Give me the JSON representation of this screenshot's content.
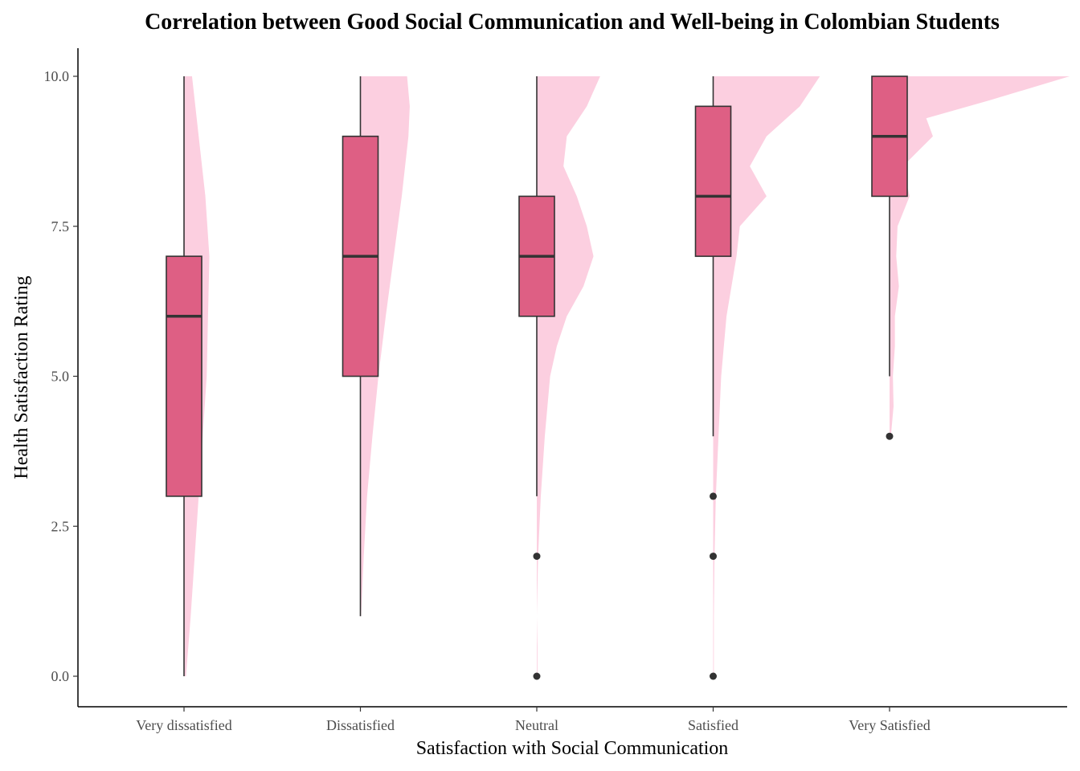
{
  "chart_data": {
    "type": "boxplot",
    "title": "Correlation between Good Social Communication and Well-being in Colombian Students",
    "xlabel": "Satisfaction with Social Communication",
    "ylabel": "Health Satisfaction Rating",
    "ylim": [
      -0.5,
      10.5
    ],
    "yticks": [
      "0.0",
      "2.5",
      "5.0",
      "7.5",
      "10.0"
    ],
    "categories": [
      "Very dissatisfied",
      "Dissatisfied",
      "Neutral",
      "Satisfied",
      "Very Satisfied"
    ],
    "grid": false,
    "colors": {
      "box_fill": "#de5f84",
      "box_line": "#333333",
      "density_fill": "#fccfe0",
      "outlier": "#333333"
    },
    "boxes": [
      {
        "category": "Very dissatisfied",
        "min": 0,
        "q1": 3,
        "median": 6,
        "q3": 7,
        "max": 10,
        "outliers": []
      },
      {
        "category": "Dissatisfied",
        "min": 1,
        "q1": 5,
        "median": 7,
        "q3": 9,
        "max": 10,
        "outliers": []
      },
      {
        "category": "Neutral",
        "min": 3,
        "q1": 6,
        "median": 7,
        "q3": 8,
        "max": 10,
        "outliers": [
          2,
          0
        ]
      },
      {
        "category": "Satisfied",
        "min": 4,
        "q1": 7,
        "median": 8,
        "q3": 9.5,
        "max": 10,
        "outliers": [
          3,
          2,
          0
        ]
      },
      {
        "category": "Very Satisfied",
        "min": 5,
        "q1": 8,
        "median": 9,
        "q3": 10,
        "max": 10,
        "outliers": [
          4
        ]
      }
    ],
    "densities": [
      {
        "category": "Very dissatisfied",
        "points": [
          [
            0,
            0.03
          ],
          [
            1,
            0.1
          ],
          [
            2,
            0.16
          ],
          [
            3,
            0.22
          ],
          [
            4,
            0.28
          ],
          [
            5,
            0.34
          ],
          [
            6,
            0.36
          ],
          [
            7,
            0.38
          ],
          [
            8,
            0.32
          ],
          [
            9,
            0.22
          ],
          [
            10,
            0.12
          ]
        ]
      },
      {
        "category": "Dissatisfied",
        "points": [
          [
            1,
            0.01
          ],
          [
            2,
            0.05
          ],
          [
            3,
            0.1
          ],
          [
            4,
            0.18
          ],
          [
            5,
            0.27
          ],
          [
            6,
            0.38
          ],
          [
            7,
            0.5
          ],
          [
            8,
            0.62
          ],
          [
            9,
            0.72
          ],
          [
            9.5,
            0.74
          ],
          [
            10,
            0.7
          ]
        ]
      },
      {
        "category": "Neutral",
        "points": [
          [
            0,
            0.01
          ],
          [
            0.5,
            0.01
          ],
          [
            1,
            0
          ],
          [
            2,
            0.02
          ],
          [
            3,
            0.06
          ],
          [
            4,
            0.12
          ],
          [
            5,
            0.2
          ],
          [
            5.5,
            0.3
          ],
          [
            6,
            0.45
          ],
          [
            6.5,
            0.7
          ],
          [
            7,
            0.85
          ],
          [
            7.5,
            0.75
          ],
          [
            8,
            0.6
          ],
          [
            8.5,
            0.4
          ],
          [
            9,
            0.45
          ],
          [
            9.5,
            0.75
          ],
          [
            10,
            0.95
          ]
        ]
      },
      {
        "category": "Satisfied",
        "points": [
          [
            0,
            0.01
          ],
          [
            1,
            0.01
          ],
          [
            2,
            0.02
          ],
          [
            3,
            0.04
          ],
          [
            4,
            0.08
          ],
          [
            5,
            0.12
          ],
          [
            6,
            0.2
          ],
          [
            7,
            0.35
          ],
          [
            7.5,
            0.4
          ],
          [
            8,
            0.8
          ],
          [
            8.5,
            0.55
          ],
          [
            9,
            0.8
          ],
          [
            9.5,
            1.3
          ],
          [
            10,
            1.6
          ]
        ]
      },
      {
        "category": "Very Satisfied",
        "points": [
          [
            4,
            0.02
          ],
          [
            4.5,
            0.06
          ],
          [
            5,
            0.05
          ],
          [
            5.5,
            0.08
          ],
          [
            6,
            0.08
          ],
          [
            6.5,
            0.14
          ],
          [
            7,
            0.1
          ],
          [
            7.5,
            0.12
          ],
          [
            8,
            0.3
          ],
          [
            8.5,
            0.2
          ],
          [
            9,
            0.65
          ],
          [
            9.3,
            0.55
          ],
          [
            9.6,
            1.5
          ],
          [
            10,
            2.7
          ]
        ]
      }
    ]
  }
}
